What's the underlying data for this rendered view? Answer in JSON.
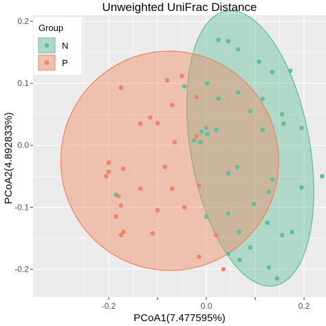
{
  "chart_data": {
    "type": "scatter",
    "title": "Unweighted UniFrac Distance",
    "xlabel": "PCoA1(7.477595%)",
    "ylabel": "PCoA2(4.892833%)",
    "xlim": [
      -0.355,
      0.245
    ],
    "ylim": [
      -0.245,
      0.21
    ],
    "x_ticks": [
      -0.2,
      -0.1,
      0.0,
      0.1,
      0.2
    ],
    "x_tick_labels": [
      "-0.2",
      "0.0",
      "0.2"
    ],
    "y_ticks": [
      -0.2,
      -0.1,
      0.0,
      0.1,
      0.2
    ],
    "y_tick_labels": [
      "-0.2",
      "-0.1",
      "0.0",
      "0.1",
      "0.2"
    ],
    "grid": true,
    "legend": {
      "title": "Group",
      "placement": "top-left"
    },
    "colors": {
      "N": "#5fbf9c",
      "P": "#f08560",
      "panel": "#ebebeb",
      "grid": "#ffffff"
    },
    "series": [
      {
        "name": "N",
        "color": "#5fbf9c",
        "points": [
          [
            0.025,
            0.17
          ],
          [
            0.045,
            0.168
          ],
          [
            0.065,
            0.155
          ],
          [
            0.108,
            0.135
          ],
          [
            0.172,
            0.12
          ],
          [
            0.135,
            0.118
          ],
          [
            0.115,
            0.075
          ],
          [
            0.025,
            0.075
          ],
          [
            0.065,
            0.085
          ],
          [
            0.002,
            0.1
          ],
          [
            -0.045,
            0.095
          ],
          [
            0.09,
            0.055
          ],
          [
            0.155,
            0.05
          ],
          [
            0.158,
            0.035
          ],
          [
            0.195,
            0.028
          ],
          [
            0.115,
            0.025
          ],
          [
            0.0,
            0.028
          ],
          [
            -0.01,
            0.022
          ],
          [
            0.02,
            0.025
          ],
          [
            0.002,
            0.018
          ],
          [
            -0.025,
            0.008
          ],
          [
            -0.012,
            0.005
          ],
          [
            0.237,
            -0.05
          ],
          [
            0.135,
            -0.055
          ],
          [
            0.063,
            -0.035
          ],
          [
            0.045,
            -0.045
          ],
          [
            0.128,
            -0.075
          ],
          [
            0.195,
            -0.068
          ],
          [
            0.097,
            -0.095
          ],
          [
            0.045,
            -0.11
          ],
          [
            0.0,
            -0.115
          ],
          [
            0.125,
            -0.125
          ],
          [
            0.175,
            -0.14
          ],
          [
            0.155,
            -0.145
          ],
          [
            0.067,
            -0.14
          ],
          [
            0.045,
            -0.175
          ],
          [
            0.09,
            -0.165
          ],
          [
            0.128,
            -0.197
          ],
          [
            0.145,
            -0.215
          ],
          [
            0.068,
            -0.185
          ],
          [
            -0.185,
            -0.08
          ]
        ]
      },
      {
        "name": "P",
        "color": "#f08560",
        "points": [
          [
            -0.175,
            0.093
          ],
          [
            -0.08,
            0.105
          ],
          [
            -0.05,
            0.112
          ],
          [
            -0.02,
            0.078
          ],
          [
            -0.07,
            0.065
          ],
          [
            -0.115,
            0.045
          ],
          [
            -0.1,
            0.036
          ],
          [
            -0.135,
            0.035
          ],
          [
            -0.065,
            0.005
          ],
          [
            -0.02,
            0.015
          ],
          [
            -0.085,
            -0.035
          ],
          [
            -0.07,
            -0.07
          ],
          [
            -0.1,
            -0.105
          ],
          [
            -0.17,
            -0.038
          ],
          [
            -0.2,
            -0.028
          ],
          [
            -0.2,
            -0.043
          ],
          [
            -0.205,
            -0.05
          ],
          [
            -0.18,
            -0.082
          ],
          [
            -0.175,
            -0.097
          ],
          [
            -0.135,
            -0.07
          ],
          [
            -0.185,
            -0.115
          ],
          [
            -0.175,
            -0.145
          ],
          [
            -0.17,
            -0.14
          ],
          [
            -0.11,
            -0.142
          ],
          [
            -0.015,
            -0.18
          ],
          [
            -0.015,
            -0.065
          ],
          [
            0.035,
            -0.2
          ],
          [
            -0.045,
            -0.1
          ],
          [
            0.02,
            -0.145
          ]
        ]
      }
    ],
    "ellipses": [
      {
        "group": "N",
        "cx": 0.09,
        "cy": -0.005,
        "rx": 0.122,
        "ry": 0.225,
        "angle_deg": -10
      },
      {
        "group": "P",
        "cx": -0.075,
        "cy": -0.025,
        "rx": 0.223,
        "ry": 0.177,
        "angle_deg": -10
      }
    ]
  }
}
